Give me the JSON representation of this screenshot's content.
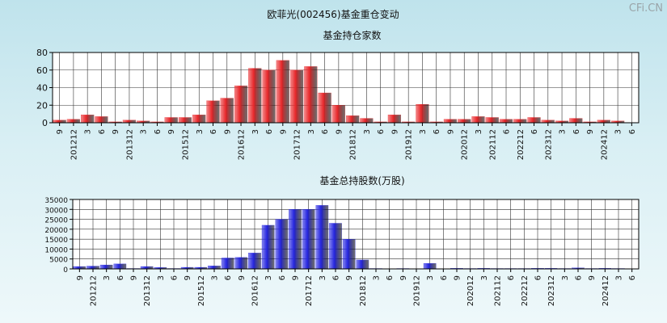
{
  "title": "欧菲光(002456)基金重仓变动",
  "watermark": "CFi.CN",
  "colors": {
    "top_bar": "#e8282b",
    "bottom_bar": "#2626e0"
  },
  "chart_data": [
    {
      "type": "bar",
      "title": "基金持仓家数",
      "ylim": [
        0,
        80
      ],
      "yticks": [
        0,
        20,
        40,
        60,
        80
      ],
      "grid": true,
      "categories": [
        "9",
        "201212",
        "3",
        "6",
        "9",
        "201312",
        "3",
        "6",
        "9",
        "201512",
        "3",
        "6",
        "9",
        "201612",
        "3",
        "6",
        "9",
        "201712",
        "3",
        "6",
        "9",
        "201812",
        "3",
        "6",
        "9",
        "201912",
        "3",
        "6",
        "9",
        "202012",
        "3",
        "202112",
        "6",
        "202212",
        "6",
        "202312",
        "3",
        "6",
        "9",
        "202412",
        "3",
        "6"
      ],
      "values": [
        3,
        4,
        9,
        7,
        1,
        3,
        2,
        1,
        6,
        6,
        9,
        25,
        28,
        42,
        62,
        60,
        71,
        60,
        64,
        34,
        20,
        8,
        5,
        1,
        9,
        1,
        21,
        1,
        4,
        4,
        7,
        6,
        4,
        4,
        6,
        3,
        2,
        5,
        1,
        3,
        2,
        0
      ]
    },
    {
      "type": "bar",
      "title": "基金总持股数(万股)",
      "ylim": [
        0,
        35000
      ],
      "yticks": [
        0,
        5000,
        10000,
        15000,
        20000,
        25000,
        30000,
        35000
      ],
      "grid": true,
      "categories": [
        "9",
        "201212",
        "3",
        "6",
        "9",
        "201312",
        "3",
        "6",
        "9",
        "201512",
        "3",
        "6",
        "9",
        "201612",
        "3",
        "6",
        "9",
        "201712",
        "3",
        "6",
        "9",
        "201812",
        "3",
        "6",
        "9",
        "201912",
        "3",
        "6",
        "9",
        "202012",
        "3",
        "202112",
        "6",
        "202212",
        "6",
        "202312",
        "3",
        "6",
        "9",
        "202412",
        "3",
        "6"
      ],
      "values": [
        1200,
        1400,
        2000,
        2500,
        200,
        1200,
        700,
        200,
        800,
        800,
        1500,
        5500,
        5800,
        8000,
        22000,
        25000,
        30000,
        30000,
        32000,
        23000,
        15000,
        4500,
        200,
        100,
        200,
        100,
        2800,
        100,
        300,
        200,
        300,
        200,
        200,
        200,
        300,
        300,
        200,
        500,
        200,
        300,
        200,
        100
      ]
    }
  ]
}
